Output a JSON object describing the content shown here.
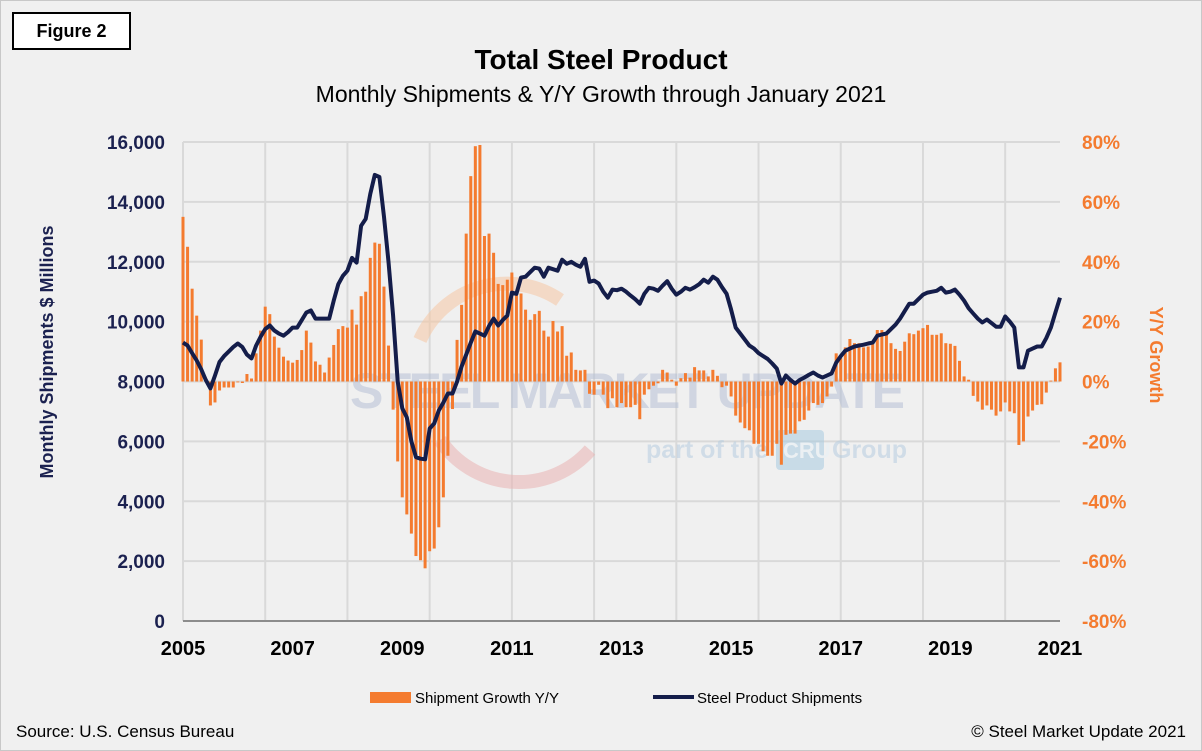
{
  "figure_label": "Figure 2",
  "source": "Source: U.S. Census Bureau",
  "copyright": "© Steel Market Update 2021",
  "watermark": {
    "line1": "STEEL MARKET UPDATE",
    "line2a": "part of the",
    "line2b": "CRU",
    "line2c": "Group"
  },
  "colors": {
    "bars": "#f47b2f",
    "line": "#141d4a",
    "left_axis": "#1b2150",
    "right_axis": "#f47b2f",
    "grid": "#d9d9d9"
  },
  "chart_data": {
    "type": "bar+line",
    "title": "Total Steel Product",
    "subtitle": "Monthly Shipments & Y/Y Growth through January 2021",
    "xlabel": "",
    "ylabel": "Monthly Shipments $ Millions",
    "ylabel_right": "Y/Y Growth",
    "x_start": "2005-01",
    "x_end": "2021-01",
    "x_ticks": [
      "2005",
      "2007",
      "2009",
      "2011",
      "2013",
      "2015",
      "2017",
      "2019",
      "2021"
    ],
    "ylim": [
      0,
      16000
    ],
    "y_ticks": [
      "0",
      "2,000",
      "4,000",
      "6,000",
      "8,000",
      "10,000",
      "12,000",
      "14,000",
      "16,000"
    ],
    "ylim_right": [
      -80,
      80
    ],
    "y_ticks_right": [
      "-80%",
      "-60%",
      "-40%",
      "-20%",
      "0%",
      "20%",
      "40%",
      "60%",
      "80%"
    ],
    "grid": true,
    "legend_position": "bottom",
    "series": [
      {
        "name": "Shipment Growth Y/Y",
        "type": "bar",
        "axis": "right",
        "unit": "%",
        "values": [
          55,
          45,
          31,
          22,
          14,
          1,
          -8,
          -7,
          -3,
          -2,
          -2,
          -2,
          -0.3,
          -0.5,
          2.5,
          1,
          9.4,
          17,
          25,
          22.5,
          15,
          11.3,
          8.3,
          7,
          6.3,
          7.2,
          10.5,
          17,
          13,
          6.7,
          5.6,
          3,
          8,
          12.2,
          17.5,
          18.5,
          18,
          24,
          19,
          28.5,
          30,
          41.3,
          46.4,
          46,
          31.7,
          12,
          -9.4,
          -26.7,
          -38.7,
          -44.4,
          -50.8,
          -58.3,
          -59.7,
          -62.4,
          -56.7,
          -55.8,
          -48.7,
          -38.7,
          -24.8,
          -9.2,
          13.9,
          25.6,
          49.4,
          68.6,
          78.6,
          79,
          48.6,
          49.4,
          43,
          32.6,
          32.2,
          34,
          36.4,
          30,
          29.4,
          24,
          20.6,
          22.5,
          23.6,
          17,
          15,
          20.2,
          16.7,
          18.5,
          8.6,
          9.7,
          3.9,
          3.7,
          3.9,
          -4.1,
          -4.4,
          -1.1,
          -4.4,
          -8.9,
          -5.6,
          -8.6,
          -7.2,
          -8.6,
          -8.6,
          -7.8,
          -12.6,
          -4.4,
          -2.6,
          -1.4,
          -0.6,
          3.9,
          3,
          0.6,
          -1.4,
          1.1,
          2.8,
          1.3,
          4.8,
          3.7,
          3.7,
          1.7,
          3.9,
          1.9,
          -1.9,
          -1.4,
          -5,
          -11.4,
          -13.7,
          -15.6,
          -16.3,
          -20.8,
          -20.8,
          -23.3,
          -24.8,
          -24.8,
          -20.8,
          -27.8,
          -17.8,
          -17.4,
          -17.4,
          -13.3,
          -12.8,
          -9.7,
          -7.2,
          -7.8,
          -7.2,
          -5,
          -1.7,
          9.4,
          7.8,
          11.4,
          14.2,
          12.8,
          12.8,
          11.4,
          11.7,
          12.6,
          17.2,
          17.2,
          15.6,
          12.8,
          10.9,
          10.2,
          13.3,
          16.1,
          15.8,
          17,
          17.8,
          18.9,
          15.6,
          15.6,
          16.1,
          12.8,
          12.6,
          11.9,
          6.9,
          1.7,
          0.6,
          -4.8,
          -6.7,
          -9.4,
          -8,
          -9.4,
          -11.4,
          -10,
          -7,
          -10,
          -10.6,
          -21.2,
          -20,
          -11.7,
          -9.7,
          -7.8,
          -7.6,
          -3.7,
          0.3,
          4.4,
          6.4
        ]
      },
      {
        "name": "Steel Product Shipments",
        "type": "line",
        "axis": "left",
        "unit": "$ millions",
        "values": [
          9300,
          9200,
          8950,
          8700,
          8400,
          8050,
          7770,
          8200,
          8650,
          8850,
          9000,
          9150,
          9270,
          9150,
          8900,
          8770,
          9200,
          9500,
          9750,
          9870,
          9700,
          9600,
          9530,
          9650,
          9800,
          9800,
          10050,
          10300,
          10370,
          10100,
          10100,
          10100,
          10100,
          10700,
          11250,
          11530,
          11700,
          12130,
          11970,
          13200,
          13430,
          14270,
          14900,
          14830,
          13500,
          12000,
          10200,
          8000,
          7100,
          6800,
          6000,
          5470,
          5420,
          5400,
          6430,
          6600,
          7030,
          7300,
          7600,
          7600,
          8000,
          8500,
          8900,
          9300,
          9670,
          9600,
          9530,
          9850,
          10100,
          9870,
          10050,
          10200,
          10970,
          10930,
          11470,
          11500,
          11650,
          11800,
          11770,
          11500,
          11800,
          11750,
          11700,
          12070,
          11930,
          12000,
          11900,
          11830,
          12100,
          11330,
          11370,
          11270,
          11000,
          10800,
          11070,
          11050,
          11100,
          11000,
          10870,
          10750,
          10600,
          10930,
          11130,
          11100,
          11030,
          11200,
          11350,
          11100,
          10900,
          11000,
          11130,
          11070,
          11150,
          11250,
          11400,
          11300,
          11500,
          11400,
          11150,
          10930,
          10400,
          9800,
          9600,
          9400,
          9200,
          9100,
          8950,
          8850,
          8750,
          8600,
          8430,
          7930,
          8200,
          8050,
          7930,
          8050,
          8130,
          8220,
          8300,
          8200,
          8130,
          8200,
          8270,
          8630,
          8850,
          9030,
          9100,
          9170,
          9200,
          9230,
          9270,
          9300,
          9530,
          9570,
          9600,
          9750,
          9900,
          10100,
          10350,
          10600,
          10600,
          10750,
          10900,
          10970,
          11000,
          11030,
          11130,
          10970,
          11000,
          11070,
          10900,
          10700,
          10450,
          10270,
          10100,
          9970,
          10070,
          9950,
          9830,
          9830,
          10170,
          10000,
          9800,
          8470,
          8470,
          9030,
          9100,
          9170,
          9170,
          9450,
          9800,
          10300,
          10800
        ]
      }
    ]
  }
}
